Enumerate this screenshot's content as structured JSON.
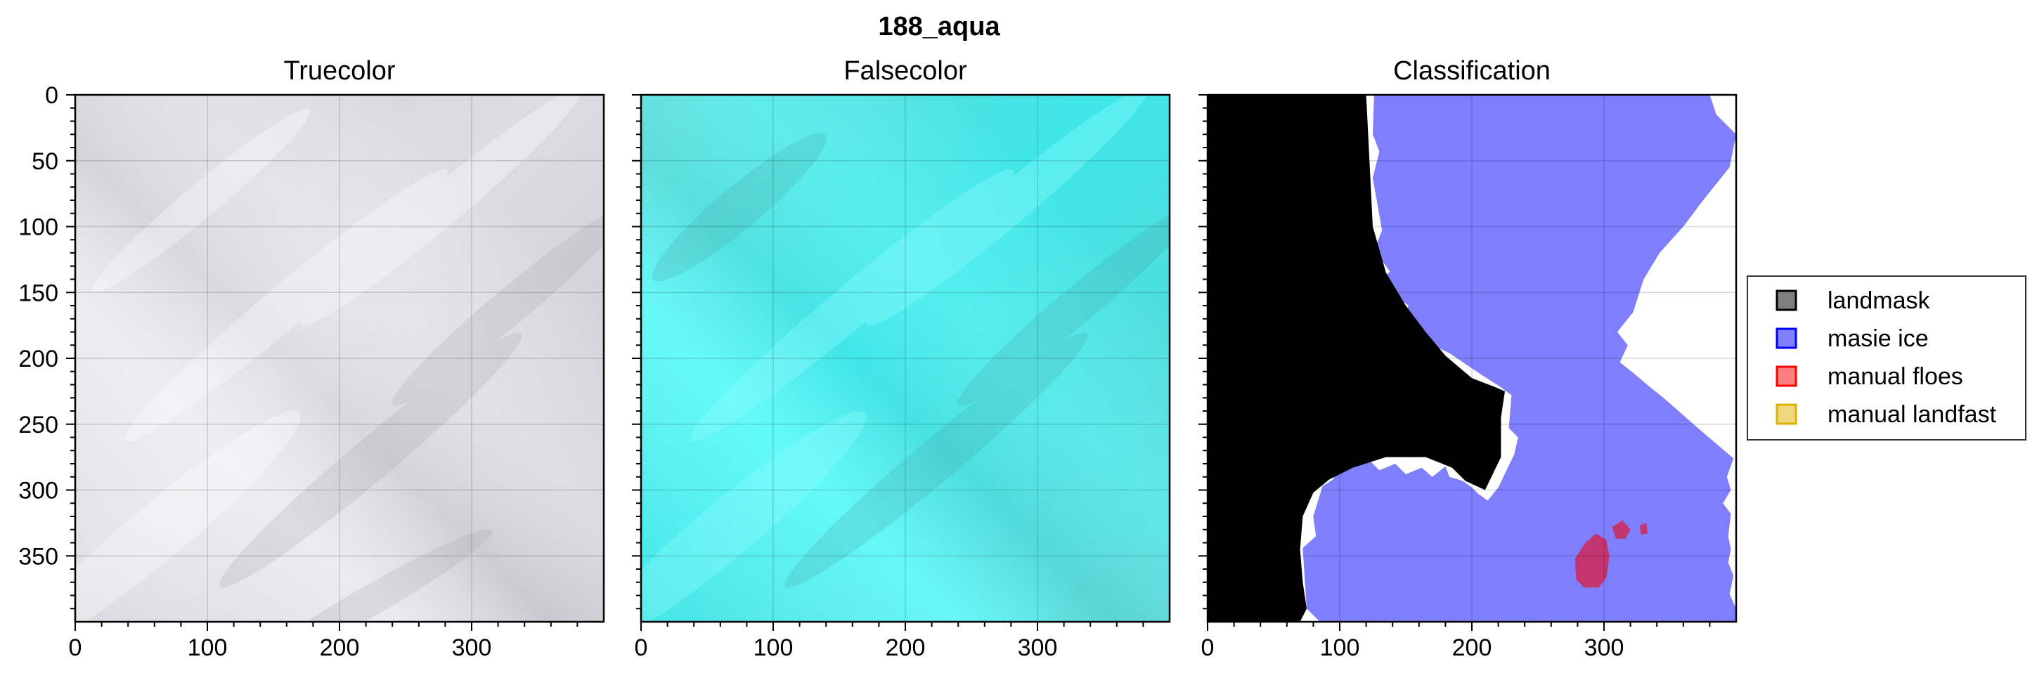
{
  "figure": {
    "suptitle": "188_aqua"
  },
  "chart_data": [
    {
      "type": "image",
      "title": "Truecolor",
      "xlim": [
        0,
        400
      ],
      "ylim": [
        400,
        0
      ],
      "xticks": [
        0,
        100,
        200,
        300
      ],
      "yticks": [
        0,
        50,
        100,
        150,
        200,
        250,
        300,
        350
      ],
      "grid": true,
      "content": "grey-white satellite true color image"
    },
    {
      "type": "image",
      "title": "Falsecolor",
      "xlim": [
        0,
        400
      ],
      "ylim": [
        400,
        0
      ],
      "xticks": [
        0,
        100,
        200,
        300
      ],
      "yticks": [
        0,
        50,
        100,
        150,
        200,
        250,
        300,
        350
      ],
      "grid": true,
      "content": "cyan satellite false color image"
    },
    {
      "type": "image",
      "title": "Classification",
      "xlim": [
        0,
        400
      ],
      "ylim": [
        400,
        0
      ],
      "xticks": [
        0,
        100,
        200,
        300
      ],
      "yticks": [
        0,
        50,
        100,
        150,
        200,
        250,
        300,
        350
      ],
      "grid": true,
      "legend_position": "right",
      "legend": [
        {
          "name": "landmask",
          "color": "#000000"
        },
        {
          "name": "masie ice",
          "color": "#0000ff"
        },
        {
          "name": "manual floes",
          "color": "#ff0000"
        },
        {
          "name": "manual landfast",
          "color": "#ddb000"
        }
      ],
      "regions": {
        "landmask": [
          [
            0,
            0
          ],
          [
            120,
            0
          ],
          [
            122,
            40
          ],
          [
            125,
            100
          ],
          [
            135,
            135
          ],
          [
            150,
            160
          ],
          [
            165,
            180
          ],
          [
            180,
            198
          ],
          [
            200,
            215
          ],
          [
            218,
            222
          ],
          [
            225,
            225
          ],
          [
            222,
            245
          ],
          [
            222,
            275
          ],
          [
            210,
            300
          ],
          [
            195,
            293
          ],
          [
            185,
            283
          ],
          [
            165,
            275
          ],
          [
            135,
            275
          ],
          [
            110,
            283
          ],
          [
            92,
            292
          ],
          [
            80,
            302
          ],
          [
            72,
            320
          ],
          [
            70,
            345
          ],
          [
            72,
            370
          ],
          [
            75,
            390
          ],
          [
            70,
            400
          ],
          [
            0,
            400
          ]
        ],
        "masie_ice": [
          [
            126,
            0
          ],
          [
            125,
            30
          ],
          [
            130,
            43
          ],
          [
            125,
            63
          ],
          [
            132,
            103
          ],
          [
            126,
            118
          ],
          [
            138,
            134
          ],
          [
            130,
            143
          ],
          [
            152,
            160
          ],
          [
            147,
            172
          ],
          [
            170,
            190
          ],
          [
            183,
            196
          ],
          [
            205,
            211
          ],
          [
            222,
            222
          ],
          [
            230,
            228
          ],
          [
            228,
            253
          ],
          [
            235,
            260
          ],
          [
            232,
            273
          ],
          [
            220,
            298
          ],
          [
            212,
            308
          ],
          [
            205,
            303
          ],
          [
            200,
            298
          ],
          [
            193,
            293
          ],
          [
            183,
            290
          ],
          [
            180,
            282
          ],
          [
            170,
            290
          ],
          [
            162,
            283
          ],
          [
            150,
            288
          ],
          [
            142,
            280
          ],
          [
            130,
            285
          ],
          [
            120,
            275
          ],
          [
            110,
            278
          ],
          [
            100,
            282
          ],
          [
            95,
            292
          ],
          [
            87,
            297
          ],
          [
            80,
            320
          ],
          [
            82,
            335
          ],
          [
            72,
            344
          ],
          [
            75,
            390
          ],
          [
            85,
            400
          ],
          [
            400,
            400
          ],
          [
            400,
            390
          ],
          [
            395,
            379
          ],
          [
            398,
            365
          ],
          [
            394,
            355
          ],
          [
            396,
            345
          ],
          [
            394,
            335
          ],
          [
            396,
            318
          ],
          [
            390,
            310
          ],
          [
            396,
            300
          ],
          [
            393,
            290
          ],
          [
            398,
            276
          ],
          [
            370,
            252
          ],
          [
            345,
            230
          ],
          [
            335,
            222
          ],
          [
            322,
            211
          ],
          [
            312,
            203
          ],
          [
            318,
            190
          ],
          [
            310,
            180
          ],
          [
            322,
            165
          ],
          [
            330,
            140
          ],
          [
            342,
            120
          ],
          [
            360,
            100
          ],
          [
            375,
            80
          ],
          [
            395,
            55
          ],
          [
            400,
            30
          ],
          [
            385,
            15
          ],
          [
            380,
            0
          ]
        ],
        "manual_floes": [
          [
            [
              286,
              340
            ],
            [
              294,
              333
            ],
            [
              302,
              338
            ],
            [
              304,
              350
            ],
            [
              302,
              366
            ],
            [
              296,
              374
            ],
            [
              285,
              374
            ],
            [
              279,
              368
            ],
            [
              278,
              352
            ]
          ],
          [
            [
              306,
              328
            ],
            [
              314,
              323
            ],
            [
              320,
              330
            ],
            [
              316,
              337
            ],
            [
              309,
              337
            ]
          ],
          [
            [
              327,
              327
            ],
            [
              332,
              325
            ],
            [
              333,
              333
            ],
            [
              328,
              334
            ]
          ]
        ]
      }
    }
  ]
}
